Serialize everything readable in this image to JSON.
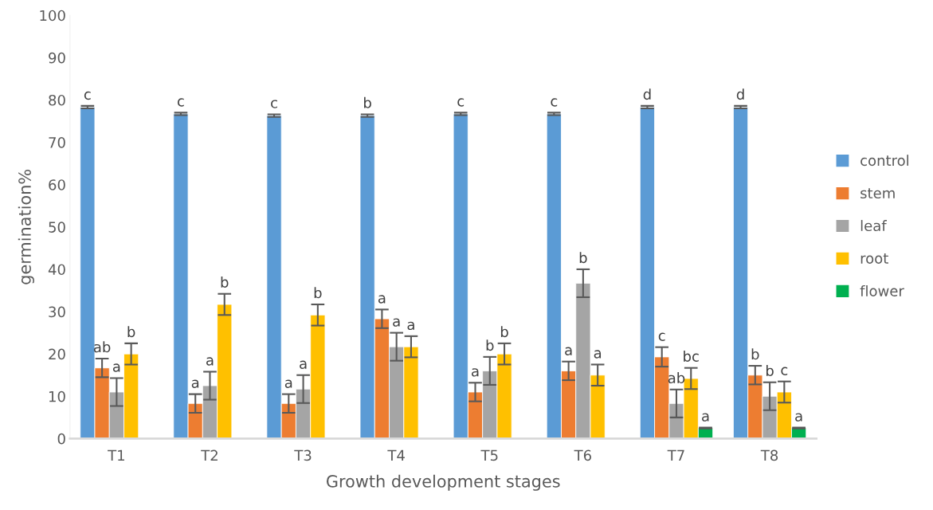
{
  "chart_data": {
    "type": "bar",
    "xlabel": "Growth development stages",
    "ylabel": "germination%",
    "categories": [
      "T1",
      "T2",
      "T3",
      "T4",
      "T5",
      "T6",
      "T7",
      "T8"
    ],
    "series": [
      {
        "name": "control",
        "color": "#5b9bd5",
        "values": [
          78.3,
          76.7,
          76.3,
          76.3,
          76.7,
          76.7,
          78.3,
          78.3
        ],
        "errors": [
          0.3,
          0.3,
          0.3,
          0.3,
          0.3,
          0.3,
          0.3,
          0.3
        ],
        "value_labels": [
          "c",
          "c",
          "c",
          "b",
          "c",
          "c",
          "d",
          "d"
        ]
      },
      {
        "name": "stem",
        "color": "#ed7d31",
        "values": [
          16.7,
          8.3,
          8.3,
          28.3,
          11,
          16,
          19.3,
          15
        ],
        "errors": [
          2.2,
          2.2,
          2.2,
          2.2,
          2.2,
          2.2,
          2.3,
          2.2
        ],
        "value_labels": [
          "ab",
          "a",
          "a",
          "a",
          "a",
          "a",
          "c",
          "b"
        ]
      },
      {
        "name": "leaf",
        "color": "#a5a5a5",
        "values": [
          11,
          12.5,
          11.7,
          21.7,
          16,
          36.7,
          8.3,
          10
        ],
        "errors": [
          3.3,
          3.3,
          3.3,
          3.3,
          3.3,
          3.3,
          3.3,
          3.3
        ],
        "value_labels": [
          "a",
          "a",
          "a",
          "a",
          "b",
          "b",
          "ab",
          "b"
        ]
      },
      {
        "name": "root",
        "color": "#ffc000",
        "values": [
          20,
          31.7,
          29.2,
          21.7,
          20,
          15,
          14.2,
          11
        ],
        "errors": [
          2.5,
          2.5,
          2.5,
          2.5,
          2.5,
          2.5,
          2.5,
          2.5
        ],
        "value_labels": [
          "b",
          "b",
          "b",
          "a",
          "b",
          "a",
          "bc",
          "c"
        ]
      },
      {
        "name": "flower",
        "color": "#00b050",
        "values": [
          null,
          null,
          null,
          null,
          null,
          null,
          2.5,
          2.5
        ],
        "errors": [
          null,
          null,
          null,
          null,
          null,
          null,
          0.1,
          0.1
        ],
        "value_labels": [
          null,
          null,
          null,
          null,
          null,
          null,
          "a",
          "a"
        ]
      }
    ],
    "ylim": [
      0,
      100
    ],
    "yticks": [
      0,
      10,
      20,
      30,
      40,
      50,
      60,
      70,
      80,
      90,
      100
    ],
    "grid": false,
    "legend": "right"
  }
}
